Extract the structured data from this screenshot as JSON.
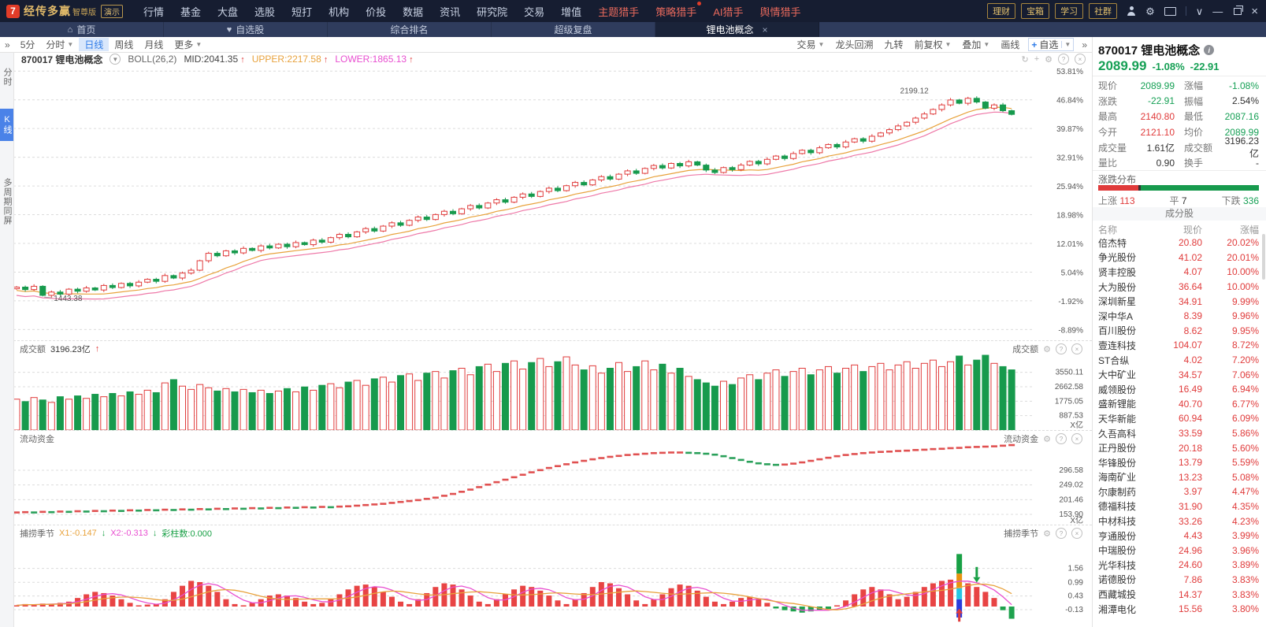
{
  "palette": {
    "up_red": "#e03b3b",
    "down_green": "#179a4d",
    "accent_blue": "#2f7ce8",
    "orange_line": "#e8a23c",
    "magenta_line": "#e84fd0",
    "gold": "#d9b566",
    "topbar_bg": "#161d31",
    "tabrow_bg": "#2f3c5d",
    "grid_gray": "#dcdcdc",
    "tick_gray": "#555555"
  },
  "icons": {
    "home": "⌂",
    "heart": "♥",
    "close": "×",
    "caret_down": "▾",
    "double_chevron": "»",
    "refresh": "↻",
    "plus": "+",
    "gear": "⚙",
    "question": "?",
    "info": "i",
    "up_arrow": "↑",
    "down_arrow": "↓",
    "chevron_down": "∨",
    "minimize": "—"
  },
  "topbar": {
    "logo_glyph": "7",
    "brand": "经传多赢",
    "edition": "智尊版",
    "demo_badge": "演示",
    "menus": [
      {
        "label": "行情"
      },
      {
        "label": "基金"
      },
      {
        "label": "大盘"
      },
      {
        "label": "选股"
      },
      {
        "label": "短打"
      },
      {
        "label": "机构"
      },
      {
        "label": "价投"
      },
      {
        "label": "数据"
      },
      {
        "label": "资讯"
      },
      {
        "label": "研究院"
      },
      {
        "label": "交易"
      },
      {
        "label": "增值"
      },
      {
        "label": "主题猎手",
        "hot": true
      },
      {
        "label": "策略猎手",
        "hot": true,
        "dot": true
      },
      {
        "label": "AI猎手",
        "hot": true
      },
      {
        "label": "舆情猎手",
        "hot": true
      }
    ],
    "quick_buttons": [
      "理财",
      "宝箱",
      "学习",
      "社群"
    ]
  },
  "tabrow": {
    "tabs": [
      {
        "label": "首页",
        "icon": "home"
      },
      {
        "label": "自选股",
        "icon": "heart"
      },
      {
        "label": "综合排名"
      },
      {
        "label": "超级复盘"
      },
      {
        "label": "锂电池概念",
        "active": true,
        "closable": true
      }
    ]
  },
  "toolbar": {
    "collapse_icon": "»",
    "expand_icon": "»",
    "left": [
      {
        "label": "5分"
      },
      {
        "label": "分时",
        "caret": true
      },
      {
        "label": "日线",
        "active": true
      },
      {
        "label": "周线"
      },
      {
        "label": "月线"
      },
      {
        "label": "更多",
        "caret": true
      }
    ],
    "right": [
      {
        "label": "交易",
        "caret": true
      },
      {
        "label": "龙头回溯"
      },
      {
        "label": "九转"
      },
      {
        "label": "前复权",
        "caret": true
      },
      {
        "label": "叠加",
        "caret": true
      },
      {
        "label": "画线"
      }
    ],
    "add_watch": {
      "plus": "+",
      "label": "自选"
    }
  },
  "indicator_bar": {
    "symbol": "870017 锂电池概念",
    "study": "BOLL(26,2)",
    "mid": "MID:2041.35",
    "upper": "UPPER:2217.58",
    "lower": "LOWER:1865.13"
  },
  "left_tabs": [
    {
      "label": "分时"
    },
    {
      "label": "K线",
      "active": true
    },
    {
      "label": "多周期同屏"
    }
  ],
  "quote_panel": {
    "code_title": "870017 锂电池概念",
    "price": "2089.99",
    "pct": "-1.08%",
    "change": "-22.91",
    "rows": [
      {
        "l1": "现价",
        "v1": "2089.99",
        "c1": "green",
        "l2": "涨幅",
        "v2": "-1.08%",
        "c2": "green"
      },
      {
        "l1": "涨跌",
        "v1": "-22.91",
        "c1": "green",
        "l2": "振幅",
        "v2": "2.54%",
        "c2": "dark"
      },
      {
        "l1": "最高",
        "v1": "2140.80",
        "c1": "red",
        "l2": "最低",
        "v2": "2087.16",
        "c2": "green"
      },
      {
        "l1": "今开",
        "v1": "2121.10",
        "c1": "red",
        "l2": "均价",
        "v2": "2089.99",
        "c2": "green"
      },
      {
        "l1": "成交量",
        "v1": "1.61亿",
        "c1": "dark",
        "l2": "成交额",
        "v2": "3196.23亿",
        "c2": "dark"
      },
      {
        "l1": "量比",
        "v1": "0.90",
        "c1": "dark",
        "l2": "换手",
        "v2": "-",
        "c2": "dark"
      }
    ],
    "distribution": {
      "title": "涨跌分布",
      "up_label": "上涨",
      "up": 113,
      "flat_label": "平",
      "flat": 7,
      "down_label": "下跌",
      "down": 336
    }
  },
  "constituents": {
    "title": "成分股",
    "headers": [
      "名称",
      "现价",
      "涨幅"
    ],
    "rows": [
      [
        "倍杰特",
        "20.80",
        "20.02%"
      ],
      [
        "争光股份",
        "41.02",
        "20.01%"
      ],
      [
        "贤丰控股",
        "4.07",
        "10.00%"
      ],
      [
        "大为股份",
        "36.64",
        "10.00%"
      ],
      [
        "深圳新星",
        "34.91",
        "9.99%"
      ],
      [
        "深中华A",
        "8.39",
        "9.96%"
      ],
      [
        "百川股份",
        "8.62",
        "9.95%"
      ],
      [
        "壹连科技",
        "104.07",
        "8.72%"
      ],
      [
        "ST合纵",
        "4.02",
        "7.20%"
      ],
      [
        "大中矿业",
        "34.57",
        "7.06%"
      ],
      [
        "威领股份",
        "16.49",
        "6.94%"
      ],
      [
        "盛新锂能",
        "40.70",
        "6.77%"
      ],
      [
        "天华新能",
        "60.94",
        "6.09%"
      ],
      [
        "久吾高科",
        "33.59",
        "5.86%"
      ],
      [
        "正丹股份",
        "20.18",
        "5.60%"
      ],
      [
        "华锋股份",
        "13.79",
        "5.59%"
      ],
      [
        "海南矿业",
        "13.23",
        "5.08%"
      ],
      [
        "尔康制药",
        "3.97",
        "4.47%"
      ],
      [
        "德福科技",
        "31.90",
        "4.35%"
      ],
      [
        "中材科技",
        "33.26",
        "4.23%"
      ],
      [
        "亨通股份",
        "4.43",
        "3.99%"
      ],
      [
        "中瑞股份",
        "24.96",
        "3.96%"
      ],
      [
        "光华科技",
        "24.60",
        "3.89%"
      ],
      [
        "诺德股份",
        "7.86",
        "3.83%"
      ],
      [
        "西藏城投",
        "14.37",
        "3.83%"
      ],
      [
        "湘潭电化",
        "15.56",
        "3.80%"
      ]
    ]
  },
  "chart_data": [
    {
      "type": "candlestick",
      "panel": "main",
      "symbol": "870017 锂电池概念",
      "study": "BOLL(26,2)",
      "y_unit": "%",
      "yticks_pct": [
        53.81,
        46.84,
        39.87,
        32.91,
        25.94,
        18.98,
        12.01,
        5.04,
        -1.92,
        -8.89
      ],
      "high_annotation": "2199.12",
      "high_index": 107,
      "low_annotation": "1443.38",
      "low_index": 3,
      "closes_pct": [
        1.4,
        0.8,
        1.6,
        -0.6,
        0.2,
        -0.3,
        0.9,
        0.4,
        1.2,
        0.7,
        1.8,
        1.3,
        2.3,
        1.7,
        2.6,
        3.3,
        2.8,
        4.2,
        3.6,
        4.8,
        5.5,
        7.8,
        9.6,
        9.0,
        10.2,
        9.7,
        10.8,
        10.3,
        11.4,
        10.9,
        11.8,
        11.2,
        12.2,
        11.7,
        12.8,
        12.3,
        13.4,
        14.2,
        13.6,
        14.8,
        15.6,
        15.0,
        16.2,
        17.0,
        16.4,
        17.6,
        18.4,
        17.8,
        19.0,
        19.8,
        19.2,
        20.4,
        21.2,
        20.6,
        21.8,
        22.6,
        22.0,
        23.2,
        24.0,
        23.4,
        24.6,
        25.4,
        24.8,
        26.0,
        26.8,
        26.2,
        27.4,
        28.2,
        27.6,
        28.8,
        29.6,
        29.0,
        30.2,
        30.9,
        30.3,
        31.4,
        30.8,
        31.8,
        31.0,
        29.8,
        29.2,
        30.4,
        29.9,
        31.0,
        31.9,
        31.3,
        32.4,
        33.2,
        32.6,
        33.8,
        34.6,
        34.0,
        35.2,
        36.0,
        35.4,
        36.6,
        37.4,
        36.8,
        38.0,
        38.8,
        39.6,
        40.5,
        41.4,
        42.4,
        43.4,
        44.5,
        45.6,
        46.8,
        46.0,
        47.2,
        46.3,
        44.8,
        45.6,
        44.2,
        43.3
      ]
    },
    {
      "type": "bar",
      "panel": "volume",
      "label": "成交额",
      "current": "3196.23亿",
      "yticks": [
        3550.11,
        2662.58,
        1775.05,
        887.53
      ],
      "unit": "X亿",
      "values_yi": [
        1900,
        1750,
        2000,
        1850,
        1700,
        2050,
        1900,
        2100,
        1950,
        2200,
        2050,
        2250,
        2100,
        2350,
        2200,
        2450,
        2300,
        2900,
        3100,
        2700,
        2500,
        2800,
        2600,
        2400,
        2550,
        2350,
        2500,
        2300,
        2450,
        2250,
        2400,
        2550,
        2350,
        2650,
        2450,
        2750,
        2850,
        2600,
        2950,
        3050,
        2750,
        3150,
        3250,
        2950,
        3350,
        3450,
        3050,
        3500,
        3600,
        3200,
        3650,
        3800,
        3400,
        3900,
        4050,
        3600,
        4100,
        4250,
        3750,
        4150,
        4400,
        3900,
        4200,
        4500,
        4000,
        3700,
        3950,
        3500,
        3800,
        4150,
        3600,
        3900,
        4250,
        3700,
        4050,
        3500,
        3800,
        3300,
        3100,
        2900,
        2700,
        3000,
        2800,
        3200,
        3400,
        3100,
        3500,
        3700,
        3300,
        3600,
        3800,
        3400,
        3700,
        3900,
        3500,
        3800,
        4000,
        3600,
        3900,
        4100,
        3700,
        4000,
        4200,
        3800,
        4100,
        4300,
        3900,
        4200,
        4550,
        4000,
        4300,
        4597,
        4100,
        3900,
        3700
      ]
    },
    {
      "type": "segments",
      "panel": "fund",
      "label": "流动资金",
      "yticks": [
        296.58,
        249.02,
        201.46,
        153.9
      ],
      "unit": "X亿",
      "values_yi": [
        160,
        161,
        160,
        162,
        161,
        163,
        162,
        164,
        163,
        165,
        164,
        166,
        165,
        167,
        166,
        168,
        167,
        169,
        168,
        170,
        169,
        171,
        170,
        172,
        171,
        173,
        172,
        174,
        173,
        175,
        174,
        176,
        175,
        177,
        176,
        178,
        177,
        179,
        180,
        182,
        184,
        186,
        188,
        191,
        194,
        197,
        200,
        204,
        208,
        214,
        220,
        227,
        234,
        242,
        250,
        258,
        266,
        274,
        282,
        290,
        297,
        304,
        310,
        316,
        322,
        327,
        332,
        336,
        340,
        343,
        346,
        348,
        350,
        352,
        353,
        354,
        354,
        353,
        352,
        350,
        347,
        342,
        336,
        330,
        324,
        319,
        316,
        314,
        315,
        318,
        322,
        327,
        332,
        337,
        342,
        346,
        349,
        352,
        354,
        356,
        357,
        359,
        360,
        362,
        363,
        365,
        366,
        368,
        369,
        371,
        372,
        373,
        374,
        376,
        378
      ]
    },
    {
      "type": "histogram_lines",
      "panel": "fishing",
      "label": "捕捞季节",
      "x1": "X1:-0.147",
      "x2": "X2:-0.313",
      "color_bars": "彩柱数:0.000",
      "yticks": [
        1.56,
        0.99,
        0.43,
        -0.13
      ],
      "values": [
        0.05,
        0.1,
        0.08,
        0.12,
        0.1,
        0.15,
        0.2,
        0.35,
        0.5,
        0.6,
        0.55,
        0.45,
        0.3,
        0.15,
        0.05,
        0.08,
        0.1,
        0.3,
        0.6,
        0.85,
        1.05,
        1.0,
        0.85,
        0.6,
        0.3,
        0.1,
        0.05,
        0.15,
        0.3,
        0.45,
        0.5,
        0.45,
        0.35,
        0.2,
        0.1,
        0.15,
        0.3,
        0.5,
        0.7,
        0.85,
        0.9,
        0.8,
        0.6,
        0.4,
        0.2,
        0.1,
        0.3,
        0.55,
        0.8,
        0.95,
        0.9,
        0.7,
        0.45,
        0.2,
        0.1,
        0.3,
        0.5,
        0.7,
        0.85,
        0.8,
        0.65,
        0.45,
        0.25,
        0.1,
        0.3,
        0.55,
        0.8,
        1.0,
        0.95,
        0.75,
        0.5,
        0.25,
        0.1,
        0.3,
        0.5,
        0.75,
        0.9,
        0.85,
        0.65,
        0.4,
        0.2,
        0.1,
        0.2,
        0.35,
        0.4,
        0.3,
        0.15,
        -0.08,
        -0.15,
        -0.2,
        -0.25,
        -0.2,
        -0.15,
        -0.1,
        0.05,
        0.25,
        0.5,
        0.7,
        0.8,
        0.7,
        0.5,
        0.3,
        0.4,
        0.6,
        0.8,
        0.95,
        1.05,
        1.1,
        1.05,
        0.95,
        0.8,
        0.6,
        0.35,
        -0.15,
        -0.5
      ],
      "stacked_bar": {
        "index": 108,
        "segments": [
          {
            "from": -0.45,
            "to": 0.3,
            "color": "#2b3cdc"
          },
          {
            "from": 0.3,
            "to": 0.75,
            "color": "#27c6e3"
          },
          {
            "from": 0.75,
            "to": 1.35,
            "color": "#e8930f"
          },
          {
            "from": 1.35,
            "to": 2.15,
            "color": "#18a045"
          }
        ]
      },
      "down_arrow_index": 110,
      "up_arrow_index": 108
    }
  ]
}
